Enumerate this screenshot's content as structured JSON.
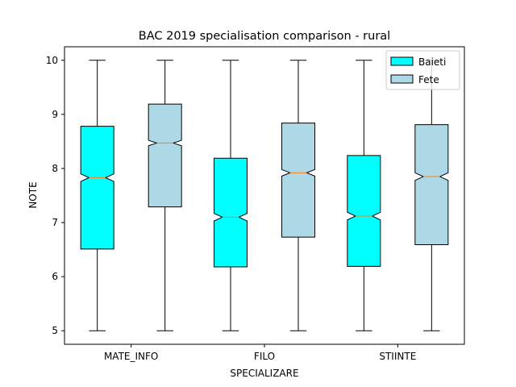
{
  "chart_data": {
    "type": "boxplot",
    "title": "BAC 2019 specialisation comparison - rural",
    "xlabel": "SPECIALIZARE",
    "ylabel": "NOTE",
    "ylim": [
      4.75,
      10.25
    ],
    "yticks": [
      "5",
      "6",
      "7",
      "8",
      "9",
      "10"
    ],
    "categories": [
      "MATE_INFO",
      "FILO",
      "STIINTE"
    ],
    "legend_position": "top-right",
    "notched": true,
    "grid": false,
    "series": [
      {
        "name": "Baieti",
        "color": "#00ffff",
        "boxes": [
          {
            "min": 5.0,
            "q1": 6.51,
            "median": 7.83,
            "q3": 8.78,
            "max": 10.0,
            "notch_low": 7.76,
            "notch_high": 7.9
          },
          {
            "min": 5.0,
            "q1": 6.18,
            "median": 7.1,
            "q3": 8.19,
            "max": 10.0,
            "notch_low": 7.03,
            "notch_high": 7.17
          },
          {
            "min": 5.0,
            "q1": 6.19,
            "median": 7.12,
            "q3": 8.24,
            "max": 10.0,
            "notch_low": 7.05,
            "notch_high": 7.19
          }
        ]
      },
      {
        "name": "Fete",
        "color": "#add8e6",
        "boxes": [
          {
            "min": 5.0,
            "q1": 7.29,
            "median": 8.47,
            "q3": 9.19,
            "max": 10.0,
            "notch_low": 8.42,
            "notch_high": 8.52
          },
          {
            "min": 5.0,
            "q1": 6.73,
            "median": 7.92,
            "q3": 8.84,
            "max": 10.0,
            "notch_low": 7.86,
            "notch_high": 7.98
          },
          {
            "min": 5.0,
            "q1": 6.59,
            "median": 7.85,
            "q3": 8.81,
            "max": 10.0,
            "notch_low": 7.78,
            "notch_high": 7.92
          }
        ]
      }
    ],
    "median_color": "#ff7f0e"
  }
}
